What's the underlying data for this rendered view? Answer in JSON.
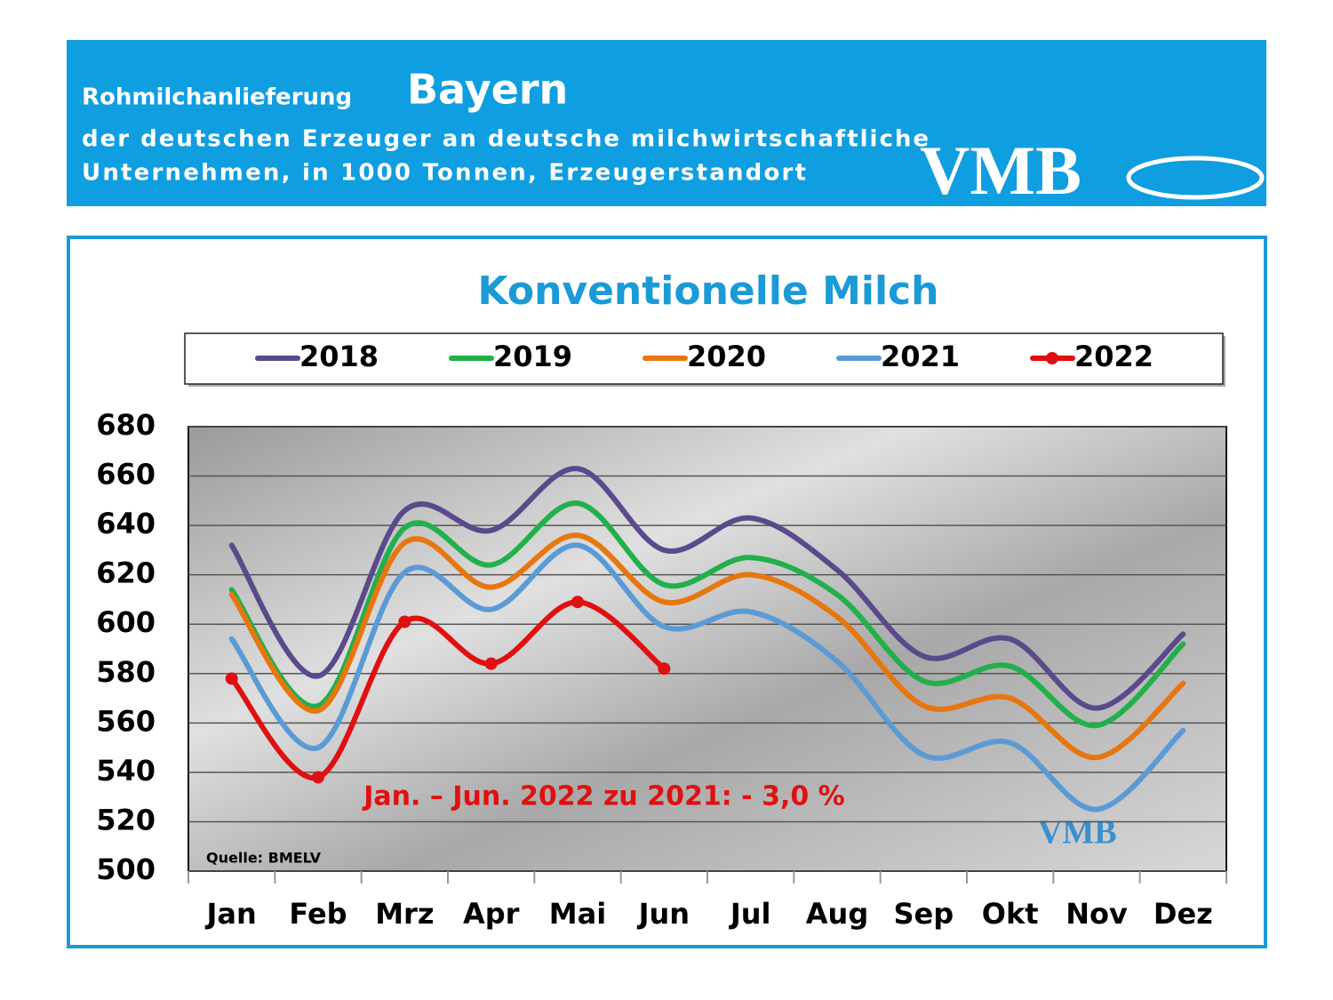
{
  "header": {
    "title_prefix": "Rohmilchanlieferung",
    "title_region": "Bayern",
    "line2": "der deutschen Erzeuger an deutsche milchwirtschaftliche",
    "line3": "Unternehmen, in 1000 Tonnen, Erzeugerstandort",
    "logo": "VMB"
  },
  "chart_data": {
    "type": "line",
    "title": "Konventionelle Milch",
    "categories": [
      "Jan",
      "Feb",
      "Mrz",
      "Apr",
      "Mai",
      "Jun",
      "Jul",
      "Aug",
      "Sep",
      "Okt",
      "Nov",
      "Dez"
    ],
    "series": [
      {
        "name": "2018",
        "color": "#5b4a8b",
        "values": [
          632,
          579,
          646,
          638,
          663,
          630,
          643,
          622,
          587,
          594,
          566,
          596
        ]
      },
      {
        "name": "2019",
        "color": "#21b04b",
        "values": [
          614,
          567,
          639,
          624,
          649,
          616,
          627,
          612,
          577,
          583,
          559,
          592
        ]
      },
      {
        "name": "2020",
        "color": "#e8760f",
        "values": [
          612,
          565,
          633,
          615,
          636,
          609,
          620,
          603,
          567,
          570,
          546,
          576
        ]
      },
      {
        "name": "2021",
        "color": "#5b9bd5",
        "values": [
          594,
          550,
          621,
          606,
          632,
          599,
          605,
          585,
          547,
          552,
          525,
          557
        ]
      },
      {
        "name": "2022",
        "color": "#e01010",
        "markers": true,
        "values": [
          578,
          538,
          601,
          584,
          609,
          582,
          null,
          null,
          null,
          null,
          null,
          null
        ]
      }
    ],
    "ylim": [
      500,
      680
    ],
    "yticks": [
      500,
      520,
      540,
      560,
      580,
      600,
      620,
      640,
      660,
      680
    ],
    "grid": true,
    "annotation": "Jan. – Jun. 2022 zu 2021: - 3,0 %",
    "source": "Quelle:  BMELV"
  }
}
